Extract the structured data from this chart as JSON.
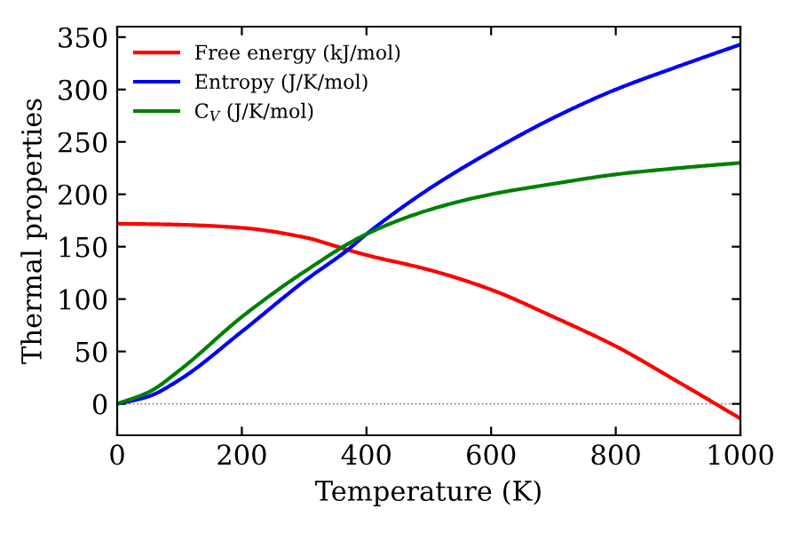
{
  "chart_data": {
    "type": "line",
    "xlabel": "Temperature (K)",
    "ylabel": "Thermal properties",
    "xlim": [
      0,
      1000
    ],
    "xticks": [
      0,
      200,
      400,
      600,
      800,
      1000
    ],
    "ylim": [
      -30,
      360
    ],
    "yticks": [
      0,
      50,
      100,
      150,
      200,
      250,
      300,
      350
    ],
    "legend": "top left",
    "grid": false,
    "line_style": "solid",
    "marker": "none",
    "ref_lines": [
      {
        "axis": "y",
        "value": 0,
        "color": "#808080",
        "line_style": "dotted"
      }
    ],
    "series": [
      {
        "name": "Free energy (kJ/mol)",
        "color": "#ff0000",
        "x": [
          0,
          100,
          200,
          300,
          370,
          400,
          500,
          600,
          700,
          800,
          900,
          1000
        ],
        "values": [
          172,
          171,
          168,
          159,
          147,
          142,
          128,
          109,
          83,
          55,
          21,
          -14
        ]
      },
      {
        "name": "Entropy (J/K/mol)",
        "color": "#0000ff",
        "x": [
          0,
          50,
          100,
          200,
          300,
          370,
          400,
          500,
          600,
          700,
          800,
          900,
          1000
        ],
        "values": [
          0,
          7,
          23,
          69,
          117,
          147,
          162,
          205,
          241,
          273,
          300,
          322,
          343
        ]
      },
      {
        "name": "C$_{V}$ (J/K/mol)",
        "color": "#008000",
        "x": [
          0,
          50,
          100,
          200,
          300,
          400,
          500,
          600,
          700,
          800,
          900,
          1000
        ],
        "values": [
          0,
          11,
          32,
          83,
          126,
          162,
          185,
          200,
          210,
          219,
          225,
          230
        ]
      }
    ]
  }
}
